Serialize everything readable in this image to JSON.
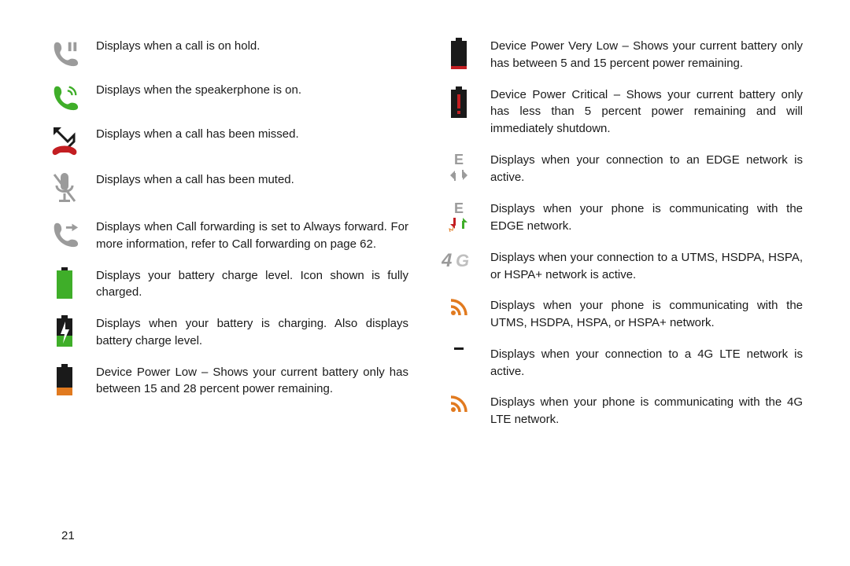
{
  "pageNumber": "21",
  "left": [
    {
      "icon": "call-hold",
      "text": "Displays when a call is on hold."
    },
    {
      "icon": "speakerphone",
      "text": "Displays when the speakerphone is on."
    },
    {
      "icon": "missed-call",
      "text": "Displays when a call has been missed."
    },
    {
      "icon": "muted",
      "text": "Displays when a call has been muted."
    },
    {
      "icon": "call-forward",
      "text": "Displays when Call forwarding is set to Always forward. For more information, refer to Call forwarding on page 62."
    },
    {
      "icon": "battery-full",
      "text": "Displays your battery charge level. Icon shown is fully charged."
    },
    {
      "icon": "battery-charging",
      "text": "Displays when your battery is charging. Also displays battery charge level."
    },
    {
      "icon": "battery-low",
      "text": "Device Power Low – Shows your current battery only has between 15 and 28 percent power remaining."
    }
  ],
  "right": [
    {
      "icon": "battery-very-low",
      "text": "Device Power Very Low – Shows your current battery only has between 5 and 15 percent power remaining."
    },
    {
      "icon": "battery-critical",
      "text": "Device Power Critical – Shows your current battery only has less than 5 percent power remaining and will immediately shutdown."
    },
    {
      "icon": "edge-active",
      "text": "Displays when your connection to an EDGE network is active."
    },
    {
      "icon": "edge-comm",
      "text": "Displays when your phone is communicating with the EDGE network."
    },
    {
      "icon": "4g",
      "text": "Displays when your connection to a UTMS, HSDPA, HSPA, or HSPA+ network is active."
    },
    {
      "icon": "rss-orange",
      "text": "Displays when your phone is communicating with the UTMS, HSDPA, HSPA, or HSPA+ network."
    },
    {
      "icon": "lte-dash",
      "text": "Displays when your connection to a 4G LTE network is active."
    },
    {
      "icon": "rss-orange",
      "text": "Displays when your phone is communicating with the 4G LTE network."
    }
  ],
  "colors": {
    "grey": "#9b9b9b",
    "green": "#3fae29",
    "red": "#c31e22",
    "black": "#1a1a1a",
    "orange": "#e17a1f",
    "greenArrow": "#3fae29",
    "orangeArrow": "#e17a1f",
    "redArrow": "#c31e22"
  }
}
